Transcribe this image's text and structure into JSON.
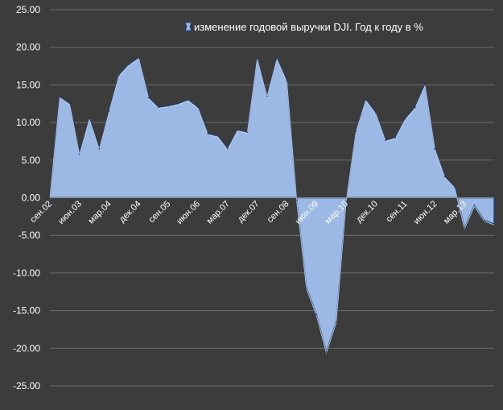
{
  "chart_data": {
    "type": "area",
    "title": "",
    "xlabel": "",
    "ylabel": "",
    "ylim": [
      -25,
      25
    ],
    "y_ticks": [
      "25.00",
      "20.00",
      "15.00",
      "10.00",
      "5.00",
      "0.00",
      "-5.00",
      "-10.00",
      "-15.00",
      "-20.00",
      "-25.00"
    ],
    "x_tick_labels": [
      "сен.02",
      "июн.03",
      "мар.04",
      "дек.04",
      "сен.05",
      "июн.06",
      "мар.07",
      "дек.07",
      "сен.08",
      "июн.09",
      "мар.10",
      "дек.10",
      "сен.11",
      "июн.12",
      "мар.13"
    ],
    "grid": true,
    "legend_position": "top",
    "colors": {
      "background": "#3c3c3c",
      "gridline": "#6e6e6e",
      "area_fill": "#9cb8e4",
      "area_stroke": "#1f3f7a",
      "text": "#ffffff"
    },
    "series": [
      {
        "name": "изменение годовой выручки DJI. Год к году в %",
        "values": [
          0.0,
          13.4,
          12.5,
          5.8,
          10.5,
          6.5,
          11.5,
          16.3,
          17.7,
          18.6,
          13.3,
          12.0,
          12.2,
          12.5,
          13.0,
          12.0,
          8.5,
          8.2,
          6.5,
          9.0,
          8.7,
          18.5,
          13.5,
          18.5,
          15.5,
          -0.3,
          -12.0,
          -15.5,
          -20.5,
          -16.5,
          -0.5,
          8.8,
          13.0,
          11.3,
          7.6,
          8.0,
          10.5,
          12.0,
          15.0,
          6.5,
          2.8,
          1.4,
          -4.0,
          -1.0,
          -3.0,
          -3.5
        ]
      }
    ]
  }
}
